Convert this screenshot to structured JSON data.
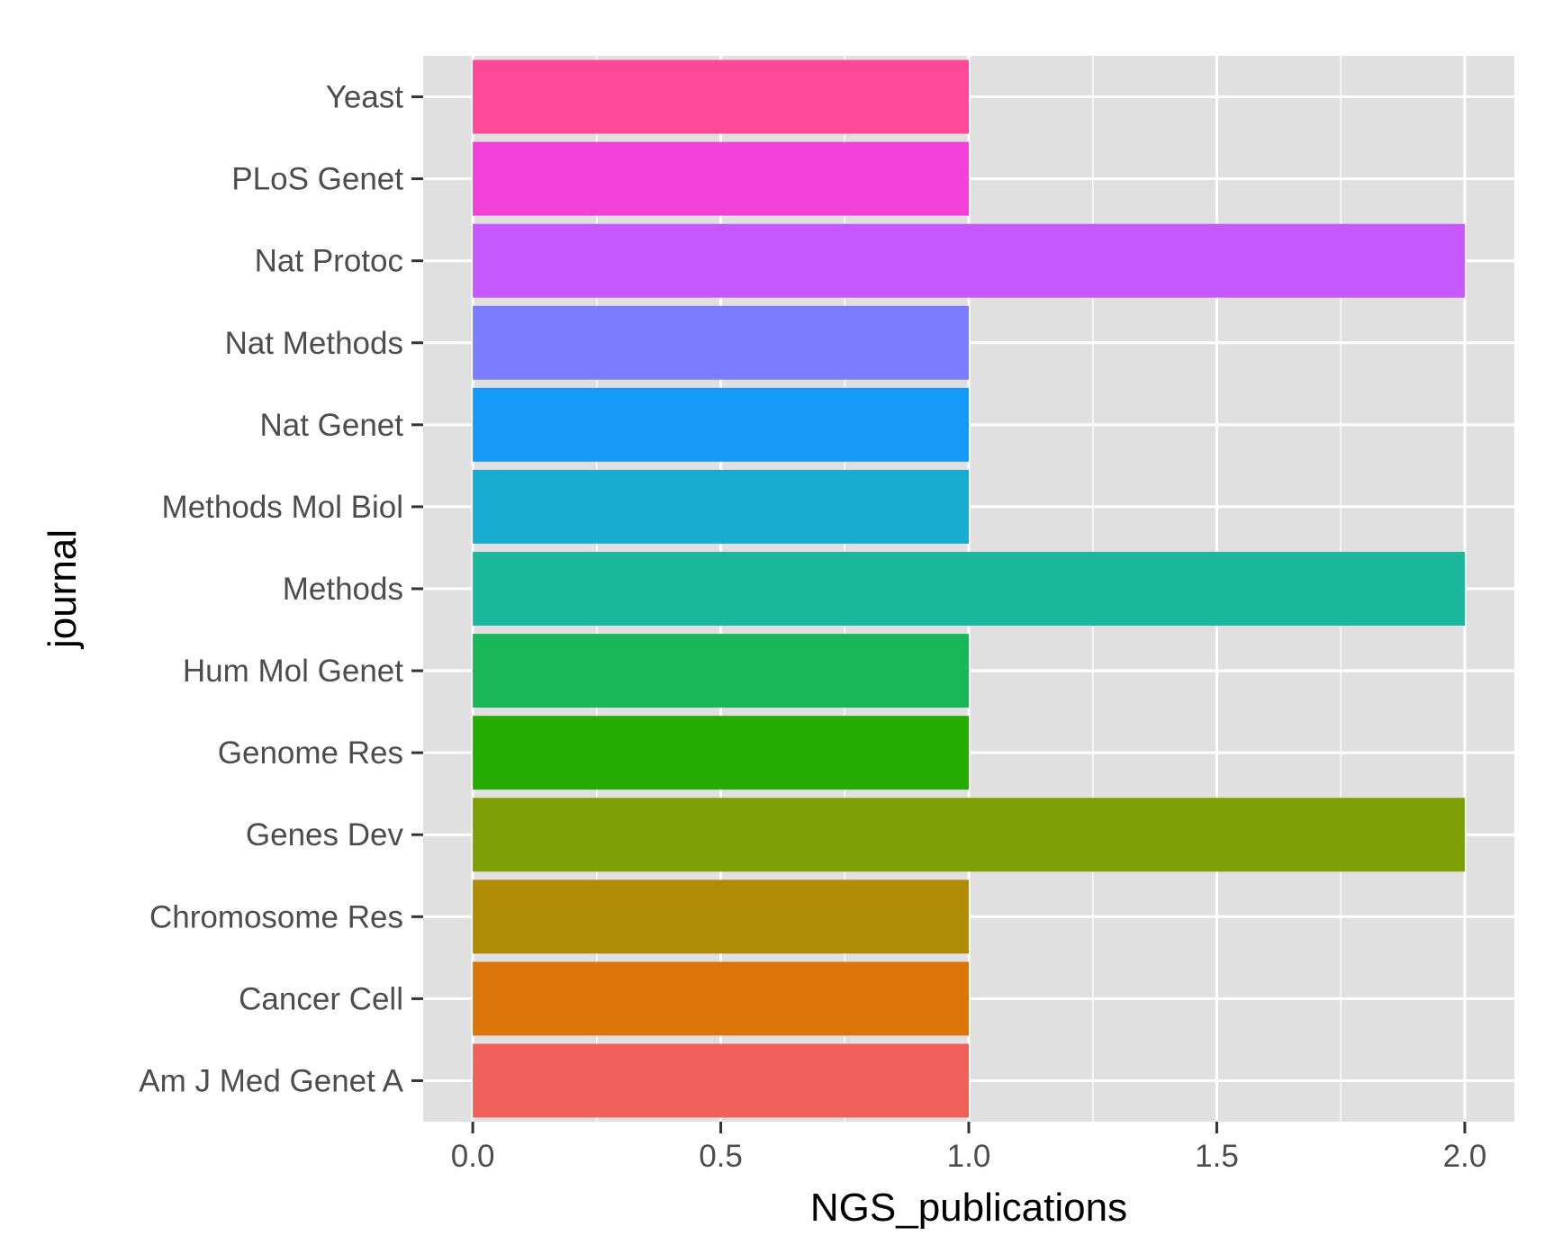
{
  "chart_data": {
    "type": "bar",
    "orientation": "horizontal",
    "title": "",
    "xlabel": "NGS_publications",
    "ylabel": "journal",
    "xlim": [
      -0.1,
      2.1
    ],
    "x_ticks": [
      "0.0",
      "0.5",
      "1.0",
      "1.5",
      "2.0"
    ],
    "x_tick_values": [
      0,
      0.5,
      1,
      1.5,
      2
    ],
    "grid": true,
    "legend": "none",
    "panel_color": "#e0e0e0",
    "grid_color": "#ffffff",
    "categories": [
      "Am J Med Genet A",
      "Cancer Cell",
      "Chromosome Res",
      "Genes Dev",
      "Genome Res",
      "Hum Mol Genet",
      "Methods",
      "Methods Mol Biol",
      "Nat Genet",
      "Nat Methods",
      "Nat Protoc",
      "PLoS Genet",
      "Yeast"
    ],
    "values": [
      1,
      1,
      1,
      2,
      1,
      1,
      2,
      1,
      1,
      1,
      2,
      1,
      1
    ],
    "colors": [
      "#f2605b",
      "#db7507",
      "#af8c04",
      "#7fa005",
      "#26ad03",
      "#19b65a",
      "#1bb89e",
      "#19acd2",
      "#1599f8",
      "#7b7dfe",
      "#c658fe",
      "#f240d8",
      "#fe4999"
    ]
  }
}
